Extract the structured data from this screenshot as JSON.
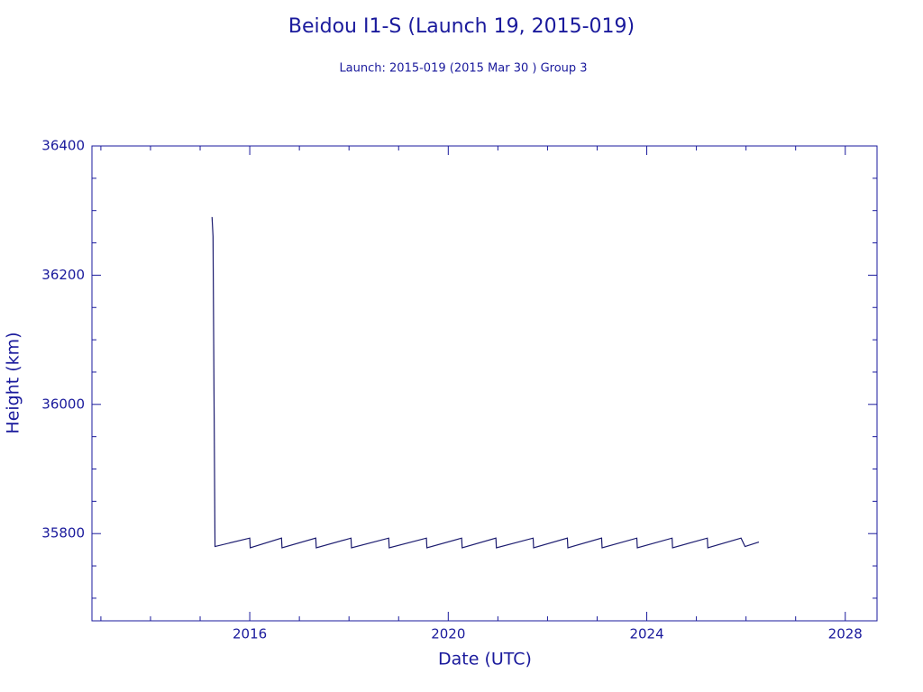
{
  "chart_data": {
    "type": "line",
    "title": "Beidou I1-S (Launch 19, 2015-019)",
    "subtitle": "Launch: 2015-019  (2015 Mar 30 )  Group 3",
    "x_label": "Date (UTC)",
    "y_label": "Height (km)",
    "color": "#1a1a6e",
    "axis_color": "#1a1a9c",
    "xlim": [
      2012.82,
      2028.64
    ],
    "ylim": [
      35665,
      36400
    ],
    "xticks": [
      2016,
      2020,
      2024,
      2028
    ],
    "yticks": [
      35800,
      36000,
      36200,
      36400
    ],
    "xticks_minor": [
      2013,
      2014,
      2015,
      2017,
      2018,
      2019,
      2021,
      2022,
      2023,
      2025,
      2026,
      2027
    ],
    "yticks_minor": [
      35700,
      35750,
      35850,
      35900,
      35950,
      36050,
      36100,
      36150,
      36250,
      36300,
      36350
    ],
    "series": [
      {
        "name": "Height",
        "x": [
          2015.24,
          2015.26,
          2015.28,
          2015.3,
          2016.0,
          2016.01,
          2016.64,
          2016.65,
          2017.33,
          2017.34,
          2018.04,
          2018.05,
          2018.8,
          2018.81,
          2019.56,
          2019.57,
          2020.27,
          2020.28,
          2020.96,
          2020.97,
          2021.71,
          2021.72,
          2022.4,
          2022.41,
          2023.09,
          2023.1,
          2023.8,
          2023.81,
          2024.51,
          2024.52,
          2025.22,
          2025.23,
          2025.9,
          2025.98,
          2026.26
        ],
        "values": [
          36290,
          36260,
          36015,
          35780,
          35793,
          35778,
          35793,
          35778,
          35793,
          35778,
          35793,
          35778,
          35793,
          35778,
          35793,
          35778,
          35793,
          35778,
          35793,
          35778,
          35793,
          35778,
          35793,
          35778,
          35793,
          35778,
          35793,
          35778,
          35793,
          35778,
          35793,
          35778,
          35793,
          35780,
          35787
        ]
      }
    ]
  }
}
